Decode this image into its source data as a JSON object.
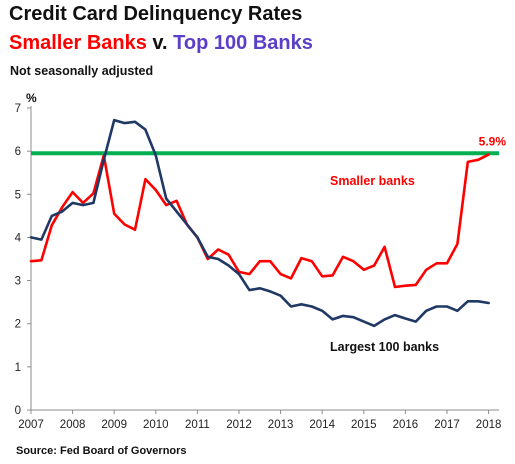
{
  "header": {
    "title": "Credit Card Delinquency Rates",
    "subtitle_part1": "Smaller Banks",
    "subtitle_mid": " v. ",
    "subtitle_part2": "Top 100 Banks",
    "note": "Not seasonally adjusted"
  },
  "footer": {
    "source": "Source: Fed Board of Governors"
  },
  "colors": {
    "smaller_banks": "#ff0000",
    "largest_banks": "#1f3864",
    "reference_line": "#00b050",
    "top100_title": "#5b3fc8"
  },
  "chart_data": {
    "type": "line",
    "ylabel": "%",
    "xlim": [
      2007,
      2018.25
    ],
    "ylim": [
      0,
      7
    ],
    "x_ticks": [
      "2007",
      "2008",
      "2009",
      "2010",
      "2011",
      "2012",
      "2013",
      "2014",
      "2015",
      "2016",
      "2017",
      "2018"
    ],
    "y_ticks": [
      "0",
      "1",
      "2",
      "3",
      "4",
      "5",
      "6",
      "7"
    ],
    "grid": false,
    "reference_line": {
      "y": 5.95,
      "label": "5.9%"
    },
    "series": [
      {
        "name": "Smaller banks",
        "color": "#ff0000",
        "x": [
          2007,
          2007.25,
          2007.5,
          2007.75,
          2008,
          2008.25,
          2008.5,
          2008.75,
          2009,
          2009.25,
          2009.5,
          2009.75,
          2010,
          2010.25,
          2010.5,
          2010.75,
          2011,
          2011.25,
          2011.5,
          2011.75,
          2012,
          2012.25,
          2012.5,
          2012.75,
          2013,
          2013.25,
          2013.5,
          2013.75,
          2014,
          2014.25,
          2014.5,
          2014.75,
          2015,
          2015.25,
          2015.5,
          2015.75,
          2016,
          2016.25,
          2016.5,
          2016.75,
          2017,
          2017.25,
          2017.5,
          2017.75,
          2018
        ],
        "values": [
          3.45,
          3.47,
          4.28,
          4.7,
          5.05,
          4.8,
          5.02,
          5.9,
          4.55,
          4.3,
          4.18,
          5.35,
          5.1,
          4.75,
          4.85,
          4.3,
          4.0,
          3.5,
          3.72,
          3.6,
          3.2,
          3.15,
          3.45,
          3.45,
          3.15,
          3.05,
          3.52,
          3.45,
          3.1,
          3.12,
          3.55,
          3.45,
          3.25,
          3.35,
          3.78,
          2.85,
          2.88,
          2.9,
          3.25,
          3.4,
          3.4,
          3.85,
          5.75,
          5.8,
          5.92
        ]
      },
      {
        "name": "Largest 100 banks",
        "color": "#1f3864",
        "x": [
          2007,
          2007.25,
          2007.5,
          2007.75,
          2008,
          2008.25,
          2008.5,
          2008.75,
          2009,
          2009.25,
          2009.5,
          2009.75,
          2010,
          2010.25,
          2010.5,
          2010.75,
          2011,
          2011.25,
          2011.5,
          2011.75,
          2012,
          2012.25,
          2012.5,
          2012.75,
          2013,
          2013.25,
          2013.5,
          2013.75,
          2014,
          2014.25,
          2014.5,
          2014.75,
          2015,
          2015.25,
          2015.5,
          2015.75,
          2016,
          2016.25,
          2016.5,
          2016.75,
          2017,
          2017.25,
          2017.5,
          2017.75,
          2018
        ],
        "values": [
          4.0,
          3.95,
          4.5,
          4.6,
          4.8,
          4.75,
          4.8,
          5.8,
          6.72,
          6.65,
          6.68,
          6.5,
          5.9,
          4.9,
          4.6,
          4.3,
          4.0,
          3.55,
          3.5,
          3.35,
          3.15,
          2.78,
          2.82,
          2.75,
          2.65,
          2.4,
          2.45,
          2.4,
          2.3,
          2.1,
          2.18,
          2.15,
          2.05,
          1.95,
          2.1,
          2.2,
          2.12,
          2.05,
          2.3,
          2.4,
          2.4,
          2.3,
          2.52,
          2.52,
          2.48
        ]
      }
    ]
  }
}
